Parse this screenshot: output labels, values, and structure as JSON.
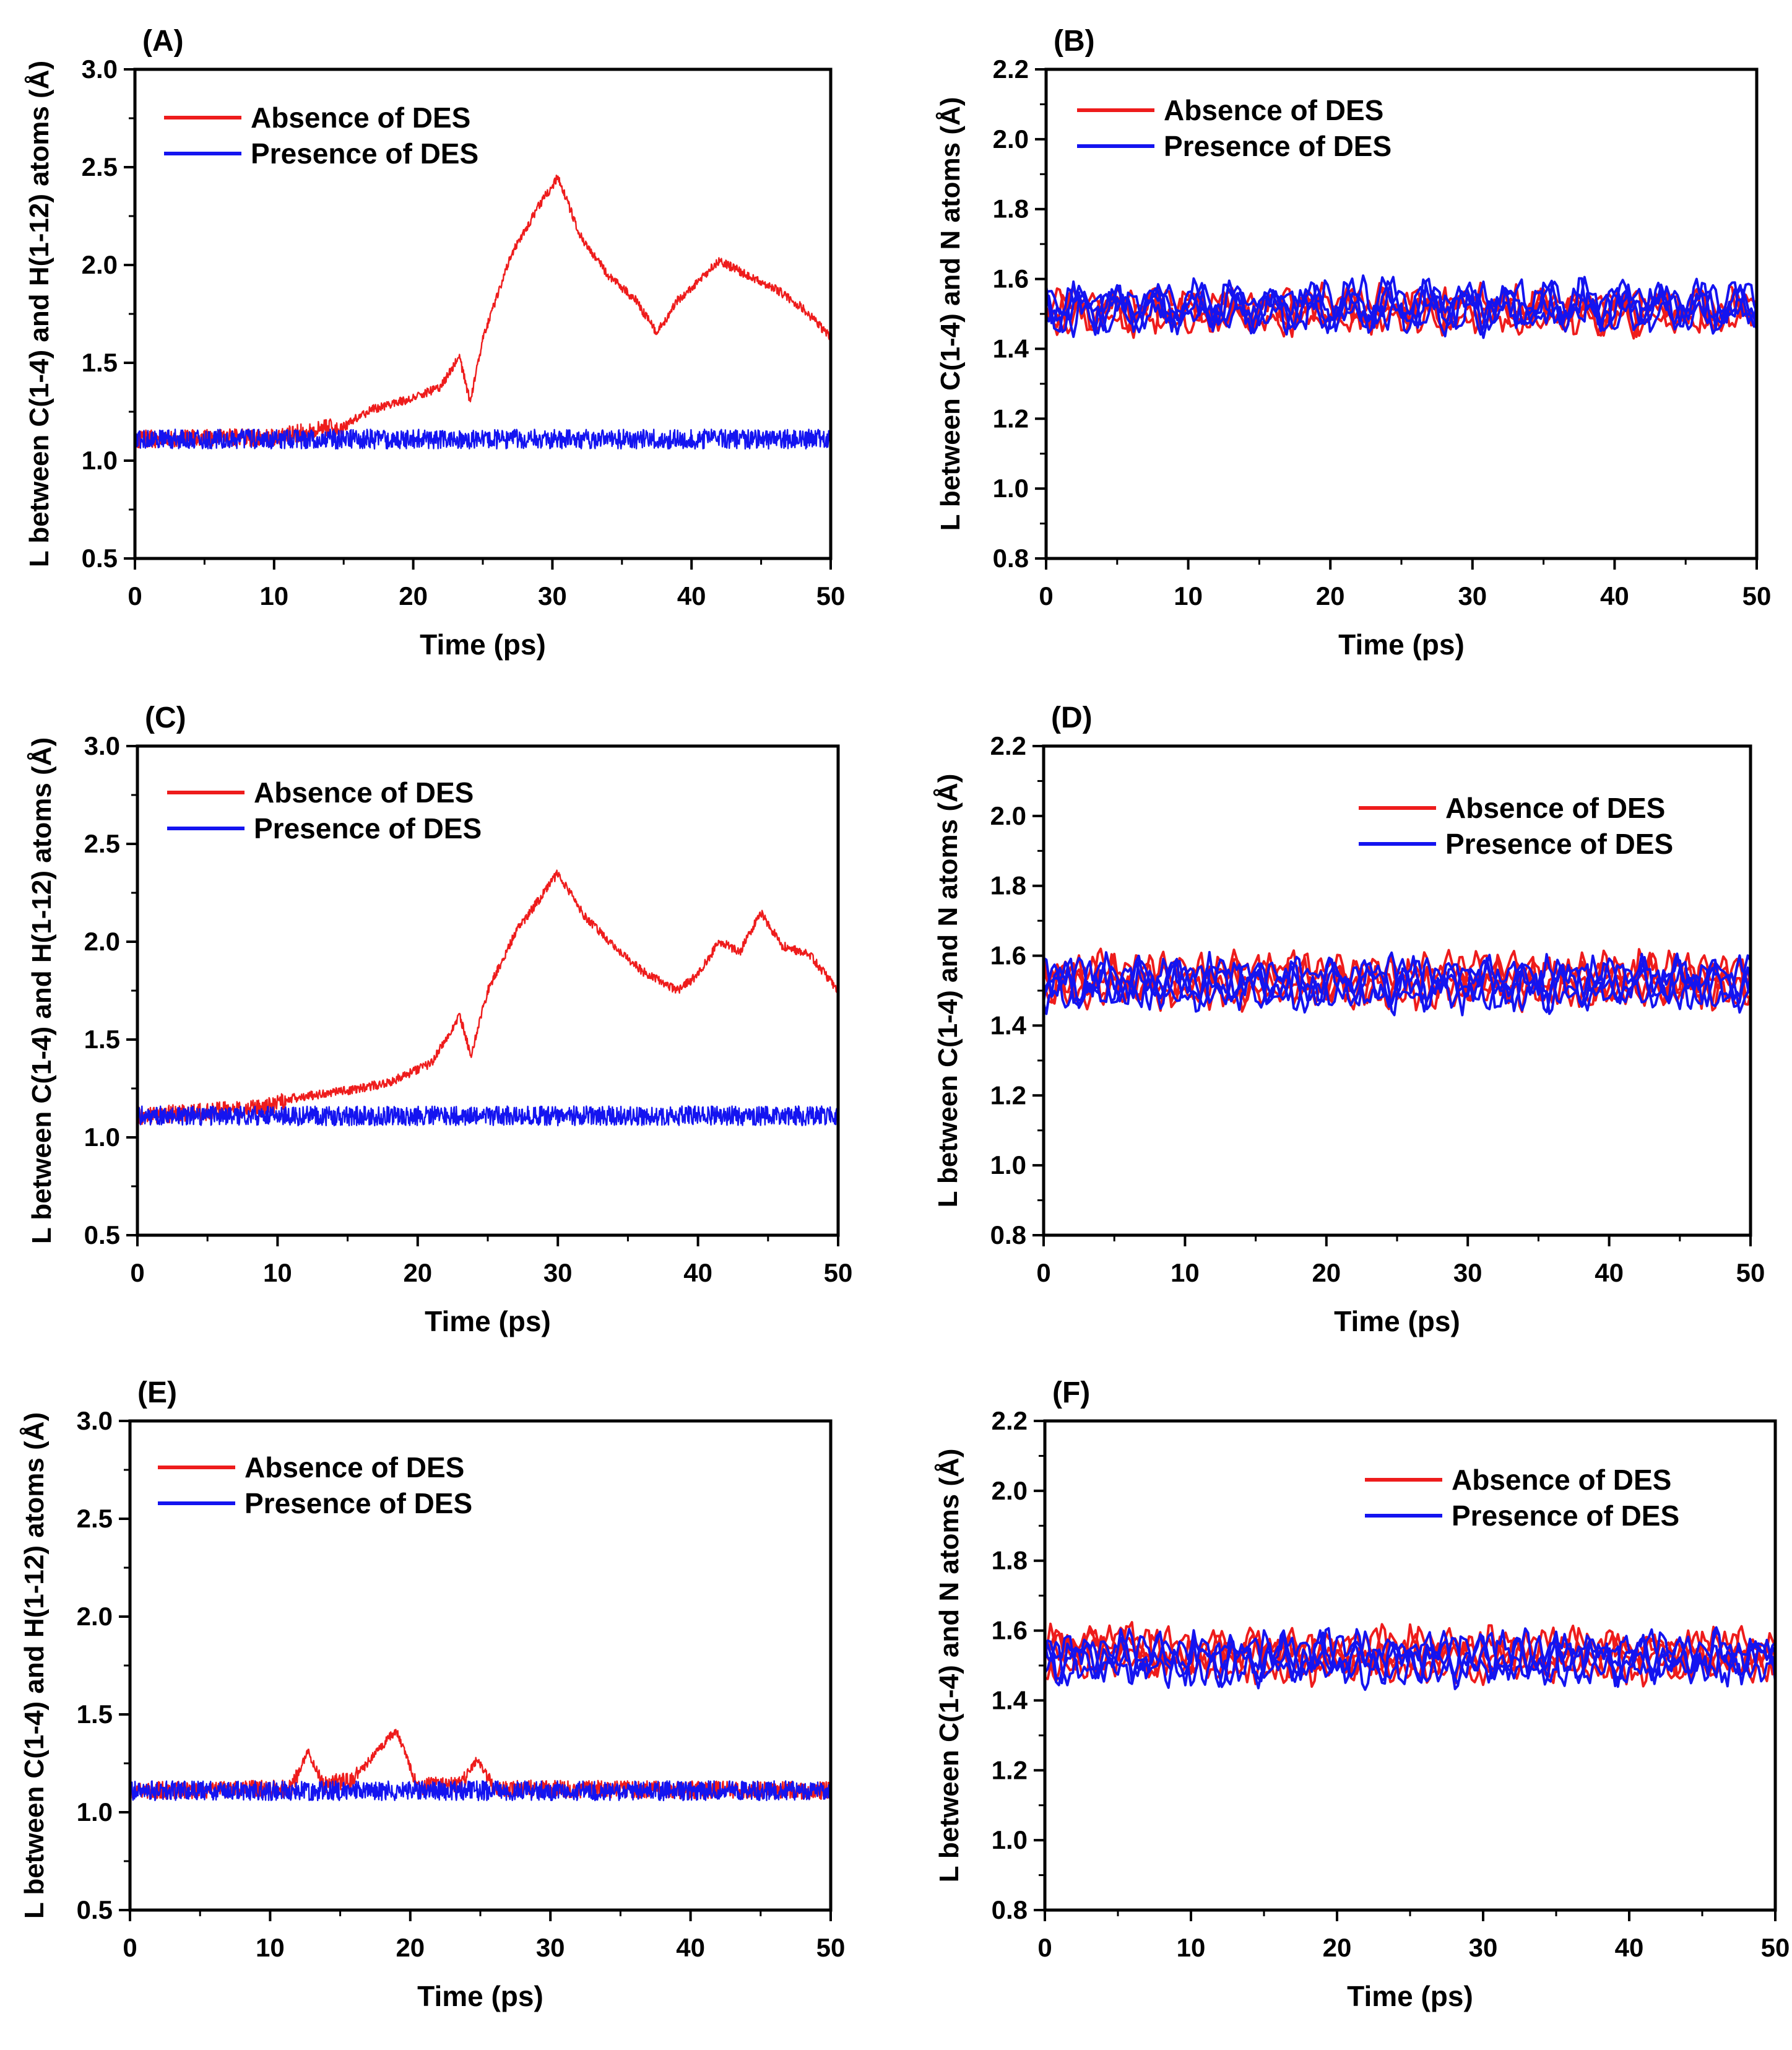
{
  "figure": {
    "colors": {
      "absence": "#ee1c1c",
      "presence": "#1414f0",
      "axis": "#000000"
    }
  },
  "chart_data": [
    {
      "id": "A",
      "panel_label": "(A)",
      "type": "line",
      "title": "",
      "xlabel": "Time (ps)",
      "ylabel": "L between C(1-4) and H(1-12) atoms (Å)",
      "xlim": [
        0,
        50
      ],
      "ylim": [
        0.5,
        3.0
      ],
      "xticks": [
        "0",
        "10",
        "20",
        "30",
        "40",
        "50"
      ],
      "yticks": [
        "0.5",
        "1.0",
        "1.5",
        "2.0",
        "2.5",
        "3.0"
      ],
      "legend": {
        "position": "top-left",
        "entries": [
          "Absence of DES",
          "Presence of DES"
        ]
      },
      "series": [
        {
          "name": "Absence of DES",
          "color": "#ee1c1c",
          "baseline": 1.11,
          "noise": 0.045,
          "lines": 1,
          "x": [
            0,
            10,
            15,
            17,
            20,
            22,
            23.3,
            24.1,
            25,
            27,
            29,
            30.4,
            32,
            34,
            36,
            37.5,
            39,
            42,
            44,
            46,
            48,
            50
          ],
          "y": [
            1.11,
            1.12,
            1.18,
            1.26,
            1.32,
            1.38,
            1.53,
            1.3,
            1.62,
            2.05,
            2.3,
            2.45,
            2.15,
            1.95,
            1.82,
            1.65,
            1.82,
            2.02,
            1.95,
            1.88,
            1.78,
            1.63
          ]
        },
        {
          "name": "Presence of DES",
          "color": "#1414f0",
          "baseline": 1.11,
          "noise": 0.05,
          "lines": 1,
          "x": [
            0,
            50
          ],
          "y": [
            1.11,
            1.11
          ]
        }
      ]
    },
    {
      "id": "B",
      "panel_label": "(B)",
      "type": "line",
      "title": "",
      "xlabel": "Time (ps)",
      "ylabel": "L between C(1-4) and N atoms (Å)",
      "xlim": [
        0,
        50
      ],
      "ylim": [
        0.8,
        2.2
      ],
      "xticks": [
        "0",
        "10",
        "20",
        "30",
        "40",
        "50"
      ],
      "yticks": [
        "0.8",
        "1.0",
        "1.2",
        "1.4",
        "1.6",
        "1.8",
        "2.0",
        "2.2"
      ],
      "legend": {
        "position": "top-left",
        "entries": [
          "Absence of DES",
          "Presence of DES"
        ]
      },
      "series": [
        {
          "name": "Absence of DES",
          "color": "#ee1c1c",
          "baseline": 1.51,
          "noise": 0.04,
          "lines": 4,
          "x": [
            0,
            50
          ],
          "y": [
            1.51,
            1.51
          ]
        },
        {
          "name": "Presence of DES",
          "color": "#1414f0",
          "baseline": 1.52,
          "noise": 0.045,
          "lines": 4,
          "x": [
            0,
            50
          ],
          "y": [
            1.52,
            1.52
          ]
        }
      ]
    },
    {
      "id": "C",
      "panel_label": "(C)",
      "type": "line",
      "title": "",
      "xlabel": "Time (ps)",
      "ylabel": "L between C(1-4) and H(1-12) atoms (Å)",
      "xlim": [
        0,
        50
      ],
      "ylim": [
        0.5,
        3.0
      ],
      "xticks": [
        "0",
        "10",
        "20",
        "30",
        "40",
        "50"
      ],
      "yticks": [
        "0.5",
        "1.0",
        "1.5",
        "2.0",
        "2.5",
        "3.0"
      ],
      "legend": {
        "position": "top-left",
        "entries": [
          "Absence of DES",
          "Presence of DES"
        ]
      },
      "series": [
        {
          "name": "Absence of DES",
          "color": "#ee1c1c",
          "baseline": 1.11,
          "noise": 0.045,
          "lines": 1,
          "x": [
            0,
            9,
            11,
            15,
            18,
            21,
            23,
            23.8,
            25,
            27,
            29,
            30,
            32,
            34,
            36,
            38.5,
            40,
            41.5,
            43,
            44.5,
            46,
            48,
            50
          ],
          "y": [
            1.11,
            1.15,
            1.2,
            1.24,
            1.28,
            1.38,
            1.62,
            1.42,
            1.75,
            2.05,
            2.25,
            2.35,
            2.12,
            1.98,
            1.85,
            1.75,
            1.83,
            2.0,
            1.95,
            2.15,
            1.98,
            1.93,
            1.75
          ]
        },
        {
          "name": "Presence of DES",
          "color": "#1414f0",
          "baseline": 1.11,
          "noise": 0.05,
          "lines": 1,
          "x": [
            0,
            50
          ],
          "y": [
            1.11,
            1.11
          ]
        }
      ]
    },
    {
      "id": "D",
      "panel_label": "(D)",
      "type": "line",
      "title": "",
      "xlabel": "Time (ps)",
      "ylabel": "L between C(1-4) and N atoms (Å)",
      "xlim": [
        0,
        50
      ],
      "ylim": [
        0.8,
        2.2
      ],
      "xticks": [
        "0",
        "10",
        "20",
        "30",
        "40",
        "50"
      ],
      "yticks": [
        "0.8",
        "1.0",
        "1.2",
        "1.4",
        "1.6",
        "1.8",
        "2.0",
        "2.2"
      ],
      "legend": {
        "position": "top-right",
        "entries": [
          "Absence of DES",
          "Presence of DES"
        ]
      },
      "series": [
        {
          "name": "Absence of DES",
          "color": "#ee1c1c",
          "baseline": 1.53,
          "noise": 0.045,
          "lines": 4,
          "x": [
            0,
            50
          ],
          "y": [
            1.53,
            1.53
          ]
        },
        {
          "name": "Presence of DES",
          "color": "#1414f0",
          "baseline": 1.52,
          "noise": 0.045,
          "lines": 4,
          "x": [
            0,
            50
          ],
          "y": [
            1.52,
            1.52
          ]
        }
      ]
    },
    {
      "id": "E",
      "panel_label": "(E)",
      "type": "line",
      "title": "",
      "xlabel": "Time (ps)",
      "ylabel": "L between C(1-4) and H(1-12) atoms (Å)",
      "xlim": [
        0,
        50
      ],
      "ylim": [
        0.5,
        3.0
      ],
      "xticks": [
        "0",
        "10",
        "20",
        "30",
        "40",
        "50"
      ],
      "yticks": [
        "0.5",
        "1.0",
        "1.5",
        "2.0",
        "2.5",
        "3.0"
      ],
      "legend": {
        "position": "top-left",
        "entries": [
          "Absence of DES",
          "Presence of DES"
        ]
      },
      "series": [
        {
          "name": "Absence of DES",
          "color": "#ee1c1c",
          "baseline": 1.11,
          "noise": 0.045,
          "lines": 1,
          "x": [
            0,
            11.5,
            12.7,
            13.8,
            16,
            17.5,
            19,
            20.5,
            23.5,
            24.8,
            26,
            50
          ],
          "y": [
            1.11,
            1.12,
            1.31,
            1.14,
            1.17,
            1.3,
            1.42,
            1.13,
            1.14,
            1.27,
            1.12,
            1.11
          ]
        },
        {
          "name": "Presence of DES",
          "color": "#1414f0",
          "baseline": 1.11,
          "noise": 0.05,
          "lines": 1,
          "x": [
            0,
            50
          ],
          "y": [
            1.11,
            1.11
          ]
        }
      ]
    },
    {
      "id": "F",
      "panel_label": "(F)",
      "type": "line",
      "title": "",
      "xlabel": "Time (ps)",
      "ylabel": "L between C(1-4) and N atoms (Å)",
      "xlim": [
        0,
        50
      ],
      "ylim": [
        0.8,
        2.2
      ],
      "xticks": [
        "0",
        "10",
        "20",
        "30",
        "40",
        "50"
      ],
      "yticks": [
        "0.8",
        "1.0",
        "1.2",
        "1.4",
        "1.6",
        "1.8",
        "2.0",
        "2.2"
      ],
      "legend": {
        "position": "top-right",
        "entries": [
          "Absence of DES",
          "Presence of DES"
        ]
      },
      "series": [
        {
          "name": "Absence of DES",
          "color": "#ee1c1c",
          "baseline": 1.53,
          "noise": 0.045,
          "lines": 4,
          "x": [
            0,
            5.5,
            6.5,
            50
          ],
          "y": [
            1.53,
            1.56,
            1.53,
            1.53
          ]
        },
        {
          "name": "Presence of DES",
          "color": "#1414f0",
          "baseline": 1.52,
          "noise": 0.045,
          "lines": 4,
          "x": [
            0,
            50
          ],
          "y": [
            1.52,
            1.52
          ]
        }
      ]
    }
  ]
}
